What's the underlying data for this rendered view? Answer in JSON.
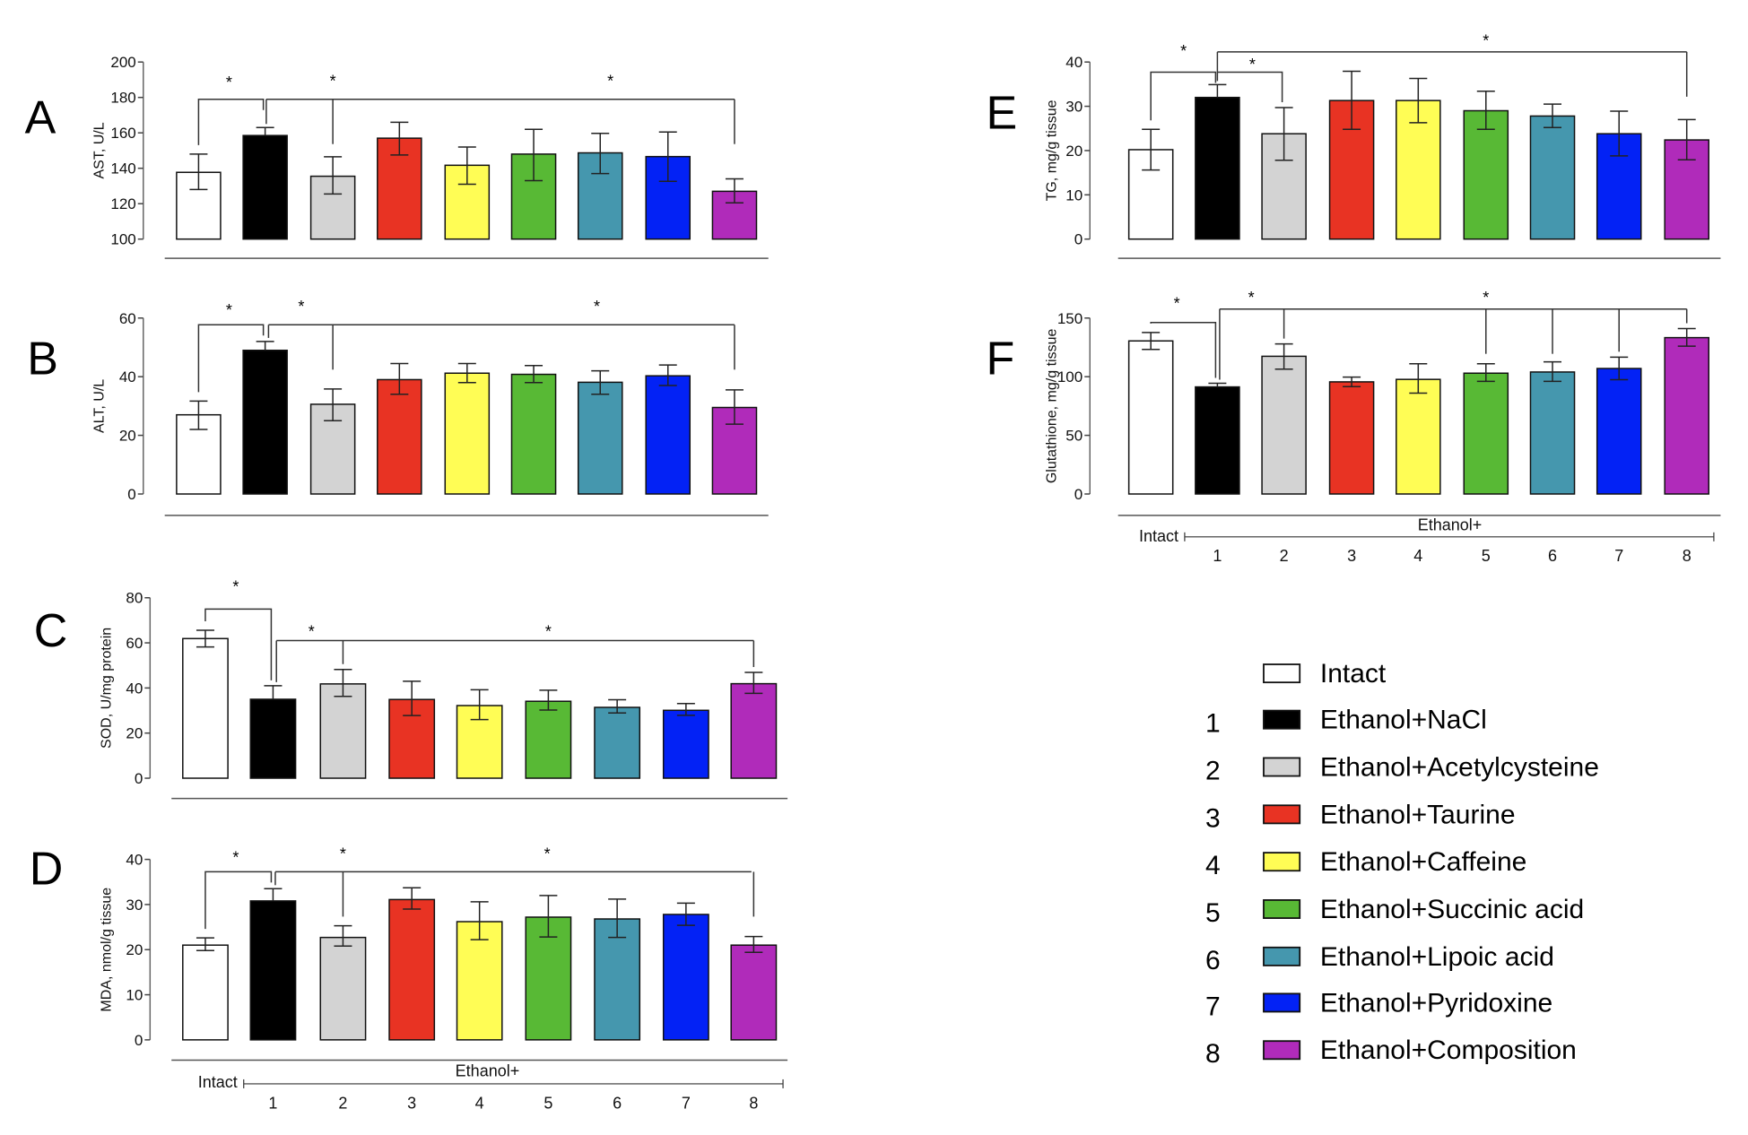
{
  "figure": {
    "groups": [
      {
        "key": "intact",
        "label": "Intact",
        "number": "",
        "color": "#ffffff"
      },
      {
        "key": "nacl",
        "label": "Ethanol+NaCl",
        "number": "1",
        "color": "#000000"
      },
      {
        "key": "acetylcysteine",
        "label": "Ethanol+Acetylcysteine",
        "number": "2",
        "color": "#d3d3d3"
      },
      {
        "key": "taurine",
        "label": "Ethanol+Taurine",
        "number": "3",
        "color": "#e83323"
      },
      {
        "key": "caffeine",
        "label": "Ethanol+Caffeine",
        "number": "4",
        "color": "#fffd55"
      },
      {
        "key": "succinic",
        "label": "Ethanol+Succinic acid",
        "number": "5",
        "color": "#58b935"
      },
      {
        "key": "lipoic",
        "label": "Ethanol+Lipoic acid",
        "number": "6",
        "color": "#4597ae"
      },
      {
        "key": "pyridoxine",
        "label": "Ethanol+Pyridoxine",
        "number": "7",
        "color": "#0322f5"
      },
      {
        "key": "composition",
        "label": "Ethanol+Composition",
        "number": "8",
        "color": "#b02bba"
      }
    ],
    "x_axis": {
      "intact_label": "Intact",
      "ethanol_label": "Ethanol+",
      "numbers": [
        "1",
        "2",
        "3",
        "4",
        "5",
        "6",
        "7",
        "8"
      ]
    },
    "significance_marker": "*"
  },
  "chart_data": [
    {
      "panel": "A",
      "type": "bar",
      "ylabel": "AST, U/L",
      "ylim": [
        100,
        200
      ],
      "yticks": [
        "100",
        "120",
        "140",
        "160",
        "180",
        "200"
      ],
      "categories": [
        "Intact",
        "1",
        "2",
        "3",
        "4",
        "5",
        "6",
        "7",
        "8"
      ],
      "values": [
        137.7,
        158.5,
        135.5,
        157,
        141.7,
        148,
        148.7,
        146.6,
        127
      ],
      "err_low": [
        128,
        158.5,
        125.5,
        147.5,
        131,
        133,
        137,
        132.6,
        120.5
      ],
      "err_high": [
        148,
        163,
        146.5,
        166,
        152,
        162,
        159.7,
        160.5,
        134
      ],
      "significance": [
        "Intact vs 1",
        "1 vs 2",
        "1 vs 8"
      ]
    },
    {
      "panel": "B",
      "type": "bar",
      "ylabel": "ALT, U/L",
      "ylim": [
        0,
        60
      ],
      "yticks": [
        "0",
        "20",
        "40",
        "60"
      ],
      "categories": [
        "Intact",
        "1",
        "2",
        "3",
        "4",
        "5",
        "6",
        "7",
        "8"
      ],
      "values": [
        27,
        49,
        30.6,
        39,
        41.2,
        40.8,
        38.1,
        40.3,
        29.5
      ],
      "err_low": [
        22,
        49,
        25,
        34,
        38,
        38,
        34,
        37,
        23.8
      ],
      "err_high": [
        31.7,
        52,
        35.8,
        44.5,
        44.5,
        43.8,
        42,
        44,
        35.5
      ],
      "significance": [
        "Intact vs 1",
        "1 vs 2",
        "1 vs 8"
      ]
    },
    {
      "panel": "C",
      "type": "bar",
      "ylabel": "SOD, U/mg protein",
      "ylim": [
        0,
        80
      ],
      "yticks": [
        "0",
        "20",
        "40",
        "60",
        "80"
      ],
      "categories": [
        "Intact",
        "1",
        "2",
        "3",
        "4",
        "5",
        "6",
        "7",
        "8"
      ],
      "values": [
        61.9,
        35,
        41.8,
        34.9,
        32.2,
        34.1,
        31.4,
        30.1,
        41.9
      ],
      "err_low": [
        58.2,
        35,
        36.3,
        27.8,
        26,
        30.2,
        28.9,
        27.9,
        37.6
      ],
      "err_high": [
        65.6,
        41,
        48.2,
        43,
        39.2,
        39,
        34.8,
        33.1,
        46.9
      ],
      "significance": [
        "Intact vs 1",
        "1 vs 2",
        "1 vs 8"
      ]
    },
    {
      "panel": "D",
      "type": "bar",
      "ylabel": "MDA, nmol/g tissue",
      "ylim": [
        0,
        40
      ],
      "yticks": [
        "0",
        "10",
        "20",
        "30",
        "40"
      ],
      "categories": [
        "Intact",
        "1",
        "2",
        "3",
        "4",
        "5",
        "6",
        "7",
        "8"
      ],
      "values": [
        21,
        30.8,
        22.7,
        31.1,
        26.2,
        27.2,
        26.8,
        27.8,
        21
      ],
      "err_low": [
        19.8,
        30.8,
        20.8,
        29,
        22.2,
        22.8,
        22.7,
        25.4,
        19.4
      ],
      "err_high": [
        22.6,
        33.5,
        25.3,
        33.7,
        30.6,
        32,
        31.2,
        30.3,
        22.9
      ],
      "significance": [
        "Intact vs 1",
        "1 vs 2",
        "1 vs 8"
      ]
    },
    {
      "panel": "E",
      "type": "bar",
      "ylabel": "TG, mg/g tissue",
      "ylim": [
        0,
        40
      ],
      "yticks": [
        "0",
        "10",
        "20",
        "30",
        "40"
      ],
      "categories": [
        "Intact",
        "1",
        "2",
        "3",
        "4",
        "5",
        "6",
        "7",
        "8"
      ],
      "values": [
        20.2,
        32,
        23.8,
        31.3,
        31.3,
        29,
        27.8,
        23.8,
        22.4
      ],
      "err_low": [
        15.6,
        32,
        17.8,
        24.8,
        26.3,
        24.8,
        25.2,
        18.8,
        17.9
      ],
      "err_high": [
        24.8,
        34.9,
        29.7,
        37.9,
        36.3,
        33.4,
        30.5,
        28.9,
        27
      ],
      "significance": [
        "Intact vs 1",
        "1 vs 2",
        "1 vs 8"
      ]
    },
    {
      "panel": "F",
      "type": "bar",
      "ylabel": "Glutathione, mg/g tissue",
      "ylim": [
        0,
        150
      ],
      "yticks": [
        "0",
        "50",
        "100",
        "150"
      ],
      "categories": [
        "Intact",
        "1",
        "2",
        "3",
        "4",
        "5",
        "6",
        "7",
        "8"
      ],
      "values": [
        130.5,
        91.3,
        117.4,
        95.6,
        97.7,
        103,
        104,
        107,
        133.3
      ],
      "err_low": [
        123.3,
        91.3,
        106.4,
        91.5,
        86,
        96,
        96,
        97.5,
        126
      ],
      "err_high": [
        137.7,
        94.4,
        127.9,
        99.7,
        111,
        111,
        112.6,
        116.7,
        141
      ],
      "significance": [
        "Intact vs 1",
        "1 vs 2",
        "1 vs 5",
        "1 vs 6",
        "1 vs 7",
        "1 vs 8"
      ]
    }
  ]
}
